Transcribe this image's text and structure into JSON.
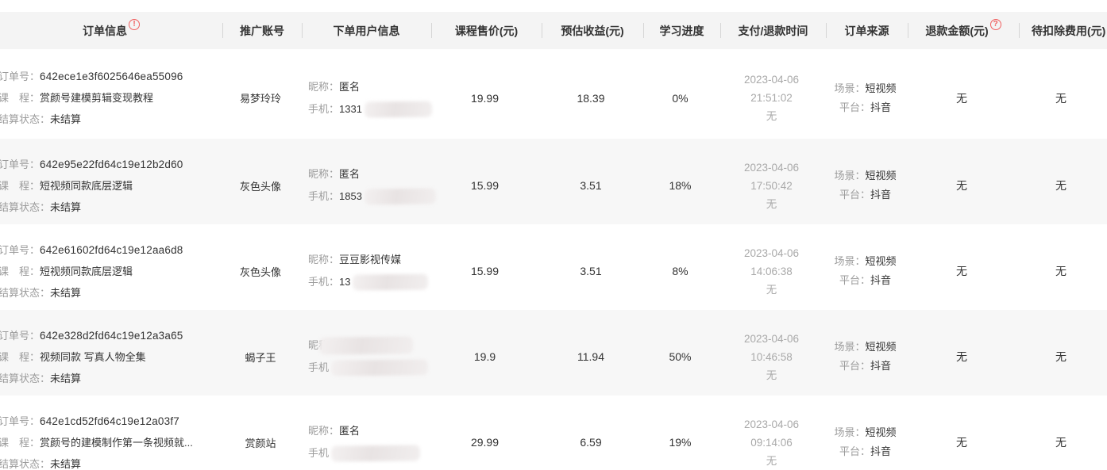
{
  "page": {
    "header_bg": "#f4f4f4",
    "zebra_bg": "#f7f7f7",
    "label_color": "#9b9b9b",
    "value_color": "#333333",
    "time_color": "#a9a9a9",
    "accent_red": "#f05f5f"
  },
  "table": {
    "columns": [
      {
        "label": "订单信息",
        "icon": "alert-circle-icon",
        "icon_glyph": "!"
      },
      {
        "label": "推广账号"
      },
      {
        "label": "下单用户信息"
      },
      {
        "label": "课程售价(元)"
      },
      {
        "label": "预估收益(元)"
      },
      {
        "label": "学习进度"
      },
      {
        "label": "支付/退款时间"
      },
      {
        "label": "订单来源"
      },
      {
        "label": "退款金额(元)",
        "icon": "question-circle-icon",
        "icon_glyph": "?"
      },
      {
        "label": "待扣除费用(元)"
      }
    ],
    "field_labels": {
      "order_no": "订单号：",
      "course": "课　程：",
      "settle": "结算状态：",
      "scene": "场景：",
      "platform": "平台："
    },
    "rows": [
      {
        "order_no": "642ece1e3f6025646ea55096",
        "course": "赏颜号建模剪辑变现教程",
        "settle": "未结算",
        "promo": "易梦玲玲",
        "user": {
          "nickname_label": "昵称：",
          "nickname": "匿名",
          "nick_blur_w": 0,
          "phone_label": "手机：",
          "phone": "1331",
          "phone_blur_w": 85
        },
        "price": "19.99",
        "revenue": "18.39",
        "progress": "0%",
        "pay": {
          "date": "2023-04-06",
          "time": "21:51:02",
          "refund": "无"
        },
        "source": {
          "scene": "短视频",
          "platform": "抖音"
        },
        "refund_amount": "无",
        "deduction": "无"
      },
      {
        "order_no": "642e95e22fd64c19e12b2d60",
        "course": "短视频同款底层逻辑",
        "settle": "未结算",
        "promo": "灰色头像",
        "user": {
          "nickname_label": "昵称：",
          "nickname": "匿名",
          "nick_blur_w": 0,
          "phone_label": "手机：",
          "phone": "1853",
          "phone_blur_w": 90
        },
        "price": "15.99",
        "revenue": "3.51",
        "progress": "18%",
        "pay": {
          "date": "2023-04-06",
          "time": "17:50:42",
          "refund": "无"
        },
        "source": {
          "scene": "短视频",
          "platform": "抖音"
        },
        "refund_amount": "无",
        "deduction": "无"
      },
      {
        "order_no": "642e61602fd64c19e12aa6d8",
        "course": "短视频同款底层逻辑",
        "settle": "未结算",
        "promo": "灰色头像",
        "user": {
          "nickname_label": "昵称：",
          "nickname": "豆豆影视传媒",
          "nick_blur_w": 0,
          "phone_label": "手机：",
          "phone": "13",
          "phone_blur_w": 95
        },
        "price": "15.99",
        "revenue": "3.51",
        "progress": "8%",
        "pay": {
          "date": "2023-04-06",
          "time": "14:06:38",
          "refund": "无"
        },
        "source": {
          "scene": "短视频",
          "platform": "抖音"
        },
        "refund_amount": "无",
        "deduction": "无"
      },
      {
        "order_no": "642e328d2fd64c19e12a3a65",
        "course": "视频同款 写真人物全集",
        "settle": "未结算",
        "promo": "蝎子王",
        "user": {
          "nickname_label": "昵称",
          "nickname": "",
          "nick_blur_w": 118,
          "phone_label": "手机",
          "phone": "",
          "phone_blur_w": 122
        },
        "price": "19.9",
        "revenue": "11.94",
        "progress": "50%",
        "pay": {
          "date": "2023-04-06",
          "time": "10:46:58",
          "refund": "无"
        },
        "source": {
          "scene": "短视频",
          "platform": "抖音"
        },
        "refund_amount": "无",
        "deduction": "无"
      },
      {
        "order_no": "642e1cd52fd64c19e12a03f7",
        "course": "赏颜号的建模制作第一条视频就...",
        "settle": "未结算",
        "promo": "赏颜站",
        "user": {
          "nickname_label": "昵称：",
          "nickname": "匿名",
          "nick_blur_w": 0,
          "phone_label": "手机",
          "phone": "",
          "phone_blur_w": 112
        },
        "price": "29.99",
        "revenue": "6.59",
        "progress": "19%",
        "pay": {
          "date": "2023-04-06",
          "time": "09:14:06",
          "refund": "无"
        },
        "source": {
          "scene": "短视频",
          "platform": "抖音"
        },
        "refund_amount": "无",
        "deduction": "无"
      }
    ]
  }
}
